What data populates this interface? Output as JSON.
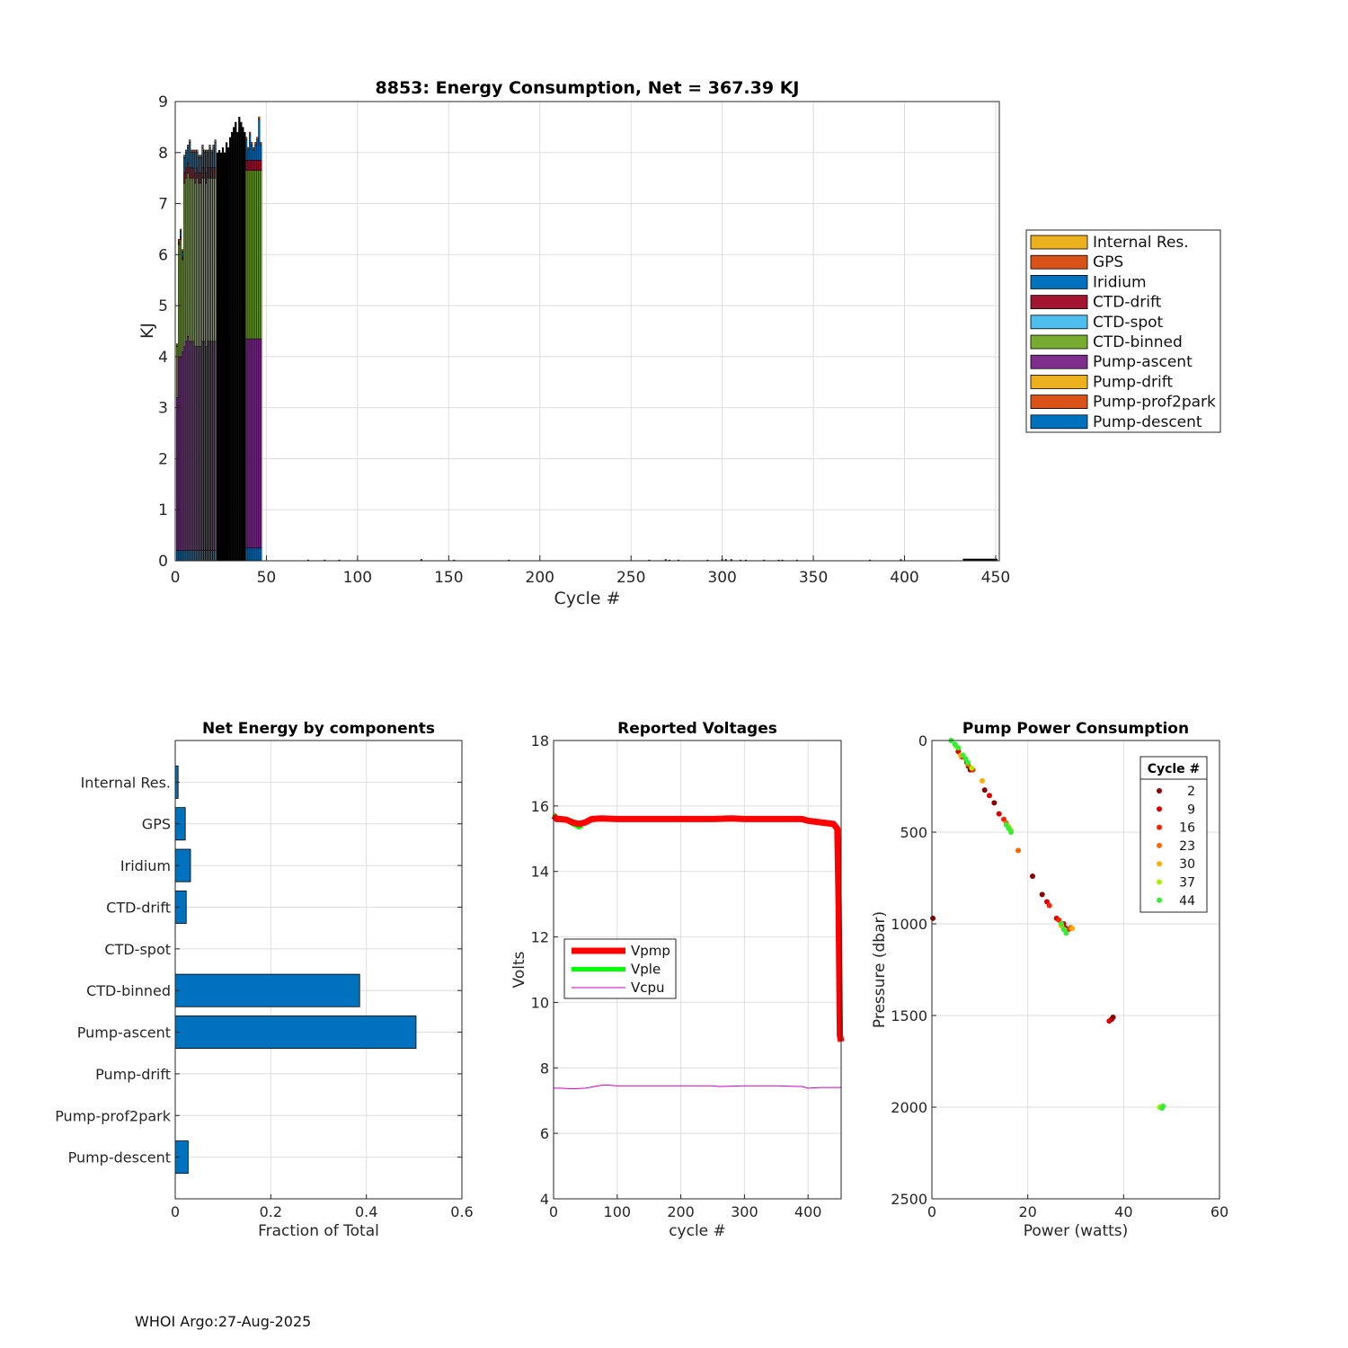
{
  "footer": "WHOI Argo:27-Aug-2025",
  "chart_data": [
    {
      "type": "bar",
      "stacked": true,
      "title": "8853: Energy Consumption,  Net = 367.39 KJ",
      "xlabel": "Cycle #",
      "ylabel": "KJ",
      "xlim": [
        0,
        452
      ],
      "ylim": [
        0,
        9
      ],
      "xticks": [
        "0",
        "50",
        "100",
        "150",
        "200",
        "250",
        "300",
        "350",
        "400",
        "450"
      ],
      "yticks": [
        "0",
        "1",
        "2",
        "3",
        "4",
        "5",
        "6",
        "7",
        "8",
        "9"
      ],
      "grid": true,
      "legend_position": "right-outside",
      "series": [
        {
          "name": "Internal Res.",
          "color": "#EDB120"
        },
        {
          "name": "GPS",
          "color": "#D95319"
        },
        {
          "name": "Iridium",
          "color": "#0072BD"
        },
        {
          "name": "CTD-drift",
          "color": "#A2142F"
        },
        {
          "name": "CTD-spot",
          "color": "#4DBEEE"
        },
        {
          "name": "CTD-binned",
          "color": "#77AC30"
        },
        {
          "name": "Pump-ascent",
          "color": "#7E2F8E"
        },
        {
          "name": "Pump-drift",
          "color": "#EDB120"
        },
        {
          "name": "Pump-prof2park",
          "color": "#D95319"
        },
        {
          "name": "Pump-descent",
          "color": "#0072BD"
        }
      ],
      "cycles": [
        {
          "x": 1,
          "desc": 0.2,
          "asc": 3.0,
          "ctd": 1.0,
          "drift": 0.0,
          "irid": 0.0,
          "gps": 0.05
        },
        {
          "x": 2,
          "desc": 0.2,
          "asc": 3.8,
          "ctd": 2.2,
          "drift": 0.05,
          "irid": 0.0,
          "gps": 0.05
        },
        {
          "x": 3,
          "desc": 0.2,
          "asc": 3.8,
          "ctd": 2.3,
          "drift": 0.05,
          "irid": 0.1,
          "gps": 0.05
        },
        {
          "x": 4,
          "desc": 0.2,
          "asc": 3.9,
          "ctd": 1.8,
          "drift": 0.05,
          "irid": 0.1,
          "gps": 0.05
        },
        {
          "x": 5,
          "desc": 0.2,
          "asc": 4.0,
          "ctd": 3.2,
          "drift": 0.2,
          "irid": 0.3,
          "gps": 0.05
        },
        {
          "x": 6,
          "desc": 0.2,
          "asc": 4.1,
          "ctd": 3.2,
          "drift": 0.2,
          "irid": 0.3,
          "gps": 0.05
        },
        {
          "x": 7,
          "desc": 0.2,
          "asc": 4.2,
          "ctd": 3.2,
          "drift": 0.2,
          "irid": 0.3,
          "gps": 0.05
        },
        {
          "x": 8,
          "desc": 0.2,
          "asc": 4.1,
          "ctd": 3.2,
          "drift": 0.2,
          "irid": 0.5,
          "gps": 0.05
        },
        {
          "x": 9,
          "desc": 0.2,
          "asc": 4.1,
          "ctd": 3.2,
          "drift": 0.2,
          "irid": 0.3,
          "gps": 0.05
        },
        {
          "x": 10,
          "desc": 0.2,
          "asc": 4.1,
          "ctd": 3.2,
          "drift": 0.2,
          "irid": 0.3,
          "gps": 0.05
        },
        {
          "x": 11,
          "desc": 0.2,
          "asc": 4.0,
          "ctd": 3.2,
          "drift": 0.2,
          "irid": 0.4,
          "gps": 0.05
        },
        {
          "x": 12,
          "desc": 0.2,
          "asc": 4.0,
          "ctd": 3.3,
          "drift": 0.2,
          "irid": 0.3,
          "gps": 0.05
        },
        {
          "x": 13,
          "desc": 0.2,
          "asc": 4.0,
          "ctd": 3.2,
          "drift": 0.2,
          "irid": 0.3,
          "gps": 0.05
        },
        {
          "x": 14,
          "desc": 0.2,
          "asc": 4.0,
          "ctd": 3.2,
          "drift": 0.2,
          "irid": 0.3,
          "gps": 0.05
        },
        {
          "x": 15,
          "desc": 0.2,
          "asc": 4.1,
          "ctd": 3.2,
          "drift": 0.2,
          "irid": 0.4,
          "gps": 0.05
        },
        {
          "x": 16,
          "desc": 0.2,
          "asc": 4.1,
          "ctd": 3.2,
          "drift": 0.2,
          "irid": 0.3,
          "gps": 0.05
        },
        {
          "x": 17,
          "desc": 0.2,
          "asc": 4.0,
          "ctd": 3.2,
          "drift": 0.2,
          "irid": 0.4,
          "gps": 0.05
        },
        {
          "x": 18,
          "desc": 0.2,
          "asc": 4.1,
          "ctd": 3.2,
          "drift": 0.2,
          "irid": 0.3,
          "gps": 0.05
        },
        {
          "x": 19,
          "desc": 0.2,
          "asc": 4.1,
          "ctd": 3.2,
          "drift": 0.2,
          "irid": 0.4,
          "gps": 0.05
        },
        {
          "x": 20,
          "desc": 0.2,
          "asc": 4.1,
          "ctd": 3.2,
          "drift": 0.2,
          "irid": 0.3,
          "gps": 0.05
        },
        {
          "x": 21,
          "desc": 0.2,
          "asc": 4.1,
          "ctd": 3.2,
          "drift": 0.2,
          "irid": 0.4,
          "gps": 0.05
        },
        {
          "x": 22,
          "desc": 0.2,
          "asc": 4.1,
          "ctd": 3.2,
          "drift": 0.2,
          "irid": 0.5,
          "gps": 0.05
        },
        {
          "x": 23,
          "total": 8.0,
          "black": true
        },
        {
          "x": 24,
          "total": 8.05,
          "black": true
        },
        {
          "x": 25,
          "total": 8.0,
          "black": true
        },
        {
          "x": 26,
          "total": 8.1,
          "black": true
        },
        {
          "x": 27,
          "total": 8.0,
          "black": true
        },
        {
          "x": 28,
          "total": 8.2,
          "black": true
        },
        {
          "x": 29,
          "total": 8.1,
          "black": true
        },
        {
          "x": 30,
          "total": 8.3,
          "black": true
        },
        {
          "x": 31,
          "total": 8.4,
          "black": true
        },
        {
          "x": 32,
          "total": 8.5,
          "black": true
        },
        {
          "x": 33,
          "total": 8.6,
          "black": true
        },
        {
          "x": 34,
          "total": 8.4,
          "black": true
        },
        {
          "x": 35,
          "total": 8.7,
          "black": true
        },
        {
          "x": 36,
          "total": 8.6,
          "black": true
        },
        {
          "x": 37,
          "total": 8.5,
          "black": true
        },
        {
          "x": 38,
          "total": 8.4,
          "black": true
        },
        {
          "x": 39,
          "desc": 0.25,
          "asc": 4.1,
          "ctd": 3.3,
          "drift": 0.2,
          "irid": 0.4,
          "gps": 0.05
        },
        {
          "x": 40,
          "desc": 0.25,
          "asc": 4.1,
          "ctd": 3.3,
          "drift": 0.2,
          "irid": 0.2,
          "gps": 0.05
        },
        {
          "x": 41,
          "desc": 0.25,
          "asc": 4.1,
          "ctd": 3.3,
          "drift": 0.2,
          "irid": 0.5,
          "gps": 0.05
        },
        {
          "x": 42,
          "desc": 0.25,
          "asc": 4.1,
          "ctd": 3.3,
          "drift": 0.2,
          "irid": 0.3,
          "gps": 0.05
        },
        {
          "x": 43,
          "desc": 0.25,
          "asc": 4.1,
          "ctd": 3.3,
          "drift": 0.2,
          "irid": 0.2,
          "gps": 0.05
        },
        {
          "x": 44,
          "desc": 0.25,
          "asc": 4.1,
          "ctd": 3.3,
          "drift": 0.2,
          "irid": 0.3,
          "gps": 0.05
        },
        {
          "x": 45,
          "desc": 0.25,
          "asc": 4.1,
          "ctd": 3.3,
          "drift": 0.2,
          "irid": 0.4,
          "gps": 0.05
        },
        {
          "x": 46,
          "desc": 0.25,
          "asc": 4.1,
          "ctd": 3.3,
          "drift": 0.2,
          "irid": 0.8,
          "gps": 0.05
        },
        {
          "x": 47,
          "desc": 0.25,
          "asc": 4.1,
          "ctd": 3.3,
          "drift": 0.2,
          "irid": 0.3,
          "gps": 0.05
        }
      ],
      "small_bars": [
        {
          "x": 73,
          "v": 0.02
        },
        {
          "x": 82,
          "v": 0.02
        },
        {
          "x": 90,
          "v": 0.02
        },
        {
          "x": 135,
          "v": 0.03
        },
        {
          "x": 153,
          "v": 0.02
        },
        {
          "x": 183,
          "v": 0.02
        },
        {
          "x": 260,
          "v": 0.02
        },
        {
          "x": 269,
          "v": 0.03
        },
        {
          "x": 271,
          "v": 0.02
        },
        {
          "x": 276,
          "v": 0.02
        },
        {
          "x": 292,
          "v": 0.02
        },
        {
          "x": 300,
          "v": 0.03
        },
        {
          "x": 302,
          "v": 0.03
        },
        {
          "x": 305,
          "v": 0.03
        },
        {
          "x": 310,
          "v": 0.02
        },
        {
          "x": 313,
          "v": 0.02
        },
        {
          "x": 323,
          "v": 0.02
        },
        {
          "x": 331,
          "v": 0.02
        },
        {
          "x": 333,
          "v": 0.02
        },
        {
          "x": 341,
          "v": 0.02
        },
        {
          "x": 381,
          "v": 0.02
        },
        {
          "x": 398,
          "v": 0.03
        }
      ],
      "tail_range": [
        432,
        451
      ]
    },
    {
      "type": "bar",
      "orientation": "horizontal",
      "title": "Net Energy by components",
      "xlabel": "Fraction of Total",
      "ylabel": "",
      "xlim": [
        0,
        0.6
      ],
      "xticks": [
        "0",
        "0.2",
        "0.4",
        "0.6"
      ],
      "categories": [
        "Internal Res.",
        "GPS",
        "Iridium",
        "CTD-drift",
        "CTD-spot",
        "CTD-binned",
        "Pump-ascent",
        "Pump-drift",
        "Pump-prof2park",
        "Pump-descent"
      ],
      "values": [
        0.006,
        0.021,
        0.032,
        0.023,
        0.0,
        0.386,
        0.504,
        0.0,
        0.0,
        0.027
      ],
      "bar_color": "#0072BD",
      "grid": true
    },
    {
      "type": "line",
      "title": "Reported Voltages",
      "xlabel": "cycle #",
      "ylabel": "Volts",
      "xlim": [
        0,
        452
      ],
      "ylim": [
        4,
        18
      ],
      "xticks": [
        "0",
        "100",
        "200",
        "300",
        "400"
      ],
      "yticks": [
        "4",
        "6",
        "8",
        "10",
        "12",
        "14",
        "16",
        "18"
      ],
      "grid": true,
      "legend_position": "left-middle",
      "series": [
        {
          "name": "Vpmp",
          "color": "#FF0000",
          "x": [
            0,
            5,
            10,
            20,
            30,
            40,
            50,
            60,
            75,
            100,
            150,
            200,
            250,
            280,
            300,
            350,
            390,
            400,
            420,
            440,
            446,
            448,
            450,
            452
          ],
          "y": [
            15.7,
            15.6,
            15.6,
            15.58,
            15.5,
            15.45,
            15.5,
            15.6,
            15.62,
            15.6,
            15.6,
            15.6,
            15.6,
            15.62,
            15.6,
            15.6,
            15.6,
            15.55,
            15.5,
            15.45,
            15.3,
            13.0,
            9.0,
            8.8
          ]
        },
        {
          "name": "Vple",
          "color": "#00FF00",
          "x": [
            0,
            5,
            10,
            20,
            30,
            40,
            45
          ],
          "y": [
            15.75,
            15.65,
            15.6,
            15.58,
            15.45,
            15.35,
            15.4
          ]
        },
        {
          "name": "Vcpu",
          "color": "#CC00CC",
          "x": [
            0,
            10,
            30,
            50,
            70,
            80,
            100,
            150,
            200,
            250,
            260,
            300,
            350,
            390,
            400,
            420,
            452
          ],
          "y": [
            7.38,
            7.38,
            7.36,
            7.38,
            7.45,
            7.48,
            7.45,
            7.45,
            7.45,
            7.45,
            7.43,
            7.45,
            7.45,
            7.43,
            7.38,
            7.4,
            7.4
          ]
        }
      ]
    },
    {
      "type": "scatter",
      "title": "Pump Power Consumption",
      "xlabel": "Power (watts)",
      "ylabel": "Pressure (dbar)",
      "xlim": [
        0,
        60
      ],
      "ylim": [
        0,
        2500
      ],
      "y_reversed": true,
      "xticks": [
        "0",
        "20",
        "40",
        "60"
      ],
      "yticks": [
        "0",
        "500",
        "1000",
        "1500",
        "2000",
        "2500"
      ],
      "grid": true,
      "legend_title": "Cycle #",
      "legend_position": "top-right",
      "series": [
        {
          "name": "2",
          "color": "#8B0000",
          "points": [
            [
              0.2,
              970
            ],
            [
              8,
              150
            ],
            [
              8,
              160
            ],
            [
              11,
              270
            ],
            [
              13,
              340
            ],
            [
              21,
              740
            ],
            [
              23,
              840
            ],
            [
              37.5,
              1520
            ],
            [
              37.8,
              1510
            ],
            [
              28,
              1025
            ],
            [
              7.6,
              140
            ]
          ]
        },
        {
          "name": "9",
          "color": "#E00000",
          "points": [
            [
              5.5,
              60
            ],
            [
              7.3,
              120
            ],
            [
              12,
              300
            ],
            [
              14,
              400
            ],
            [
              24,
              880
            ],
            [
              26,
              970
            ],
            [
              27.5,
              1000
            ],
            [
              37,
              1530
            ]
          ]
        },
        {
          "name": "16",
          "color": "#FF2000",
          "points": [
            [
              6.3,
              90
            ],
            [
              8.5,
              160
            ],
            [
              15,
              430
            ],
            [
              24.5,
              900
            ],
            [
              26.5,
              980
            ],
            [
              28.5,
              1030
            ]
          ]
        },
        {
          "name": "23",
          "color": "#FF6600",
          "points": [
            [
              7.5,
              130
            ],
            [
              15.5,
              450
            ],
            [
              18,
              600
            ],
            [
              29,
              1020
            ]
          ]
        },
        {
          "name": "30",
          "color": "#FFB000",
          "points": [
            [
              6,
              80
            ],
            [
              10.5,
              220
            ],
            [
              16,
              470
            ],
            [
              27,
              1010
            ],
            [
              29.3,
              1025
            ]
          ]
        },
        {
          "name": "37",
          "color": "#AAEE00",
          "points": [
            [
              5,
              30
            ],
            [
              8.3,
              150
            ],
            [
              16.5,
              490
            ],
            [
              27.6,
              1030
            ],
            [
              47.5,
              2000
            ]
          ]
        },
        {
          "name": "44",
          "color": "#33EE33",
          "points": [
            [
              4,
              0
            ],
            [
              4.8,
              20
            ],
            [
              5.5,
              40
            ],
            [
              6.5,
              80
            ],
            [
              7,
              100
            ],
            [
              7.5,
              120
            ],
            [
              15.5,
              460
            ],
            [
              16,
              480
            ],
            [
              16.5,
              500
            ],
            [
              27.5,
              1030
            ],
            [
              28,
              1050
            ],
            [
              27,
              1000
            ],
            [
              48,
              2005
            ],
            [
              48.2,
              1995
            ]
          ]
        }
      ]
    }
  ]
}
